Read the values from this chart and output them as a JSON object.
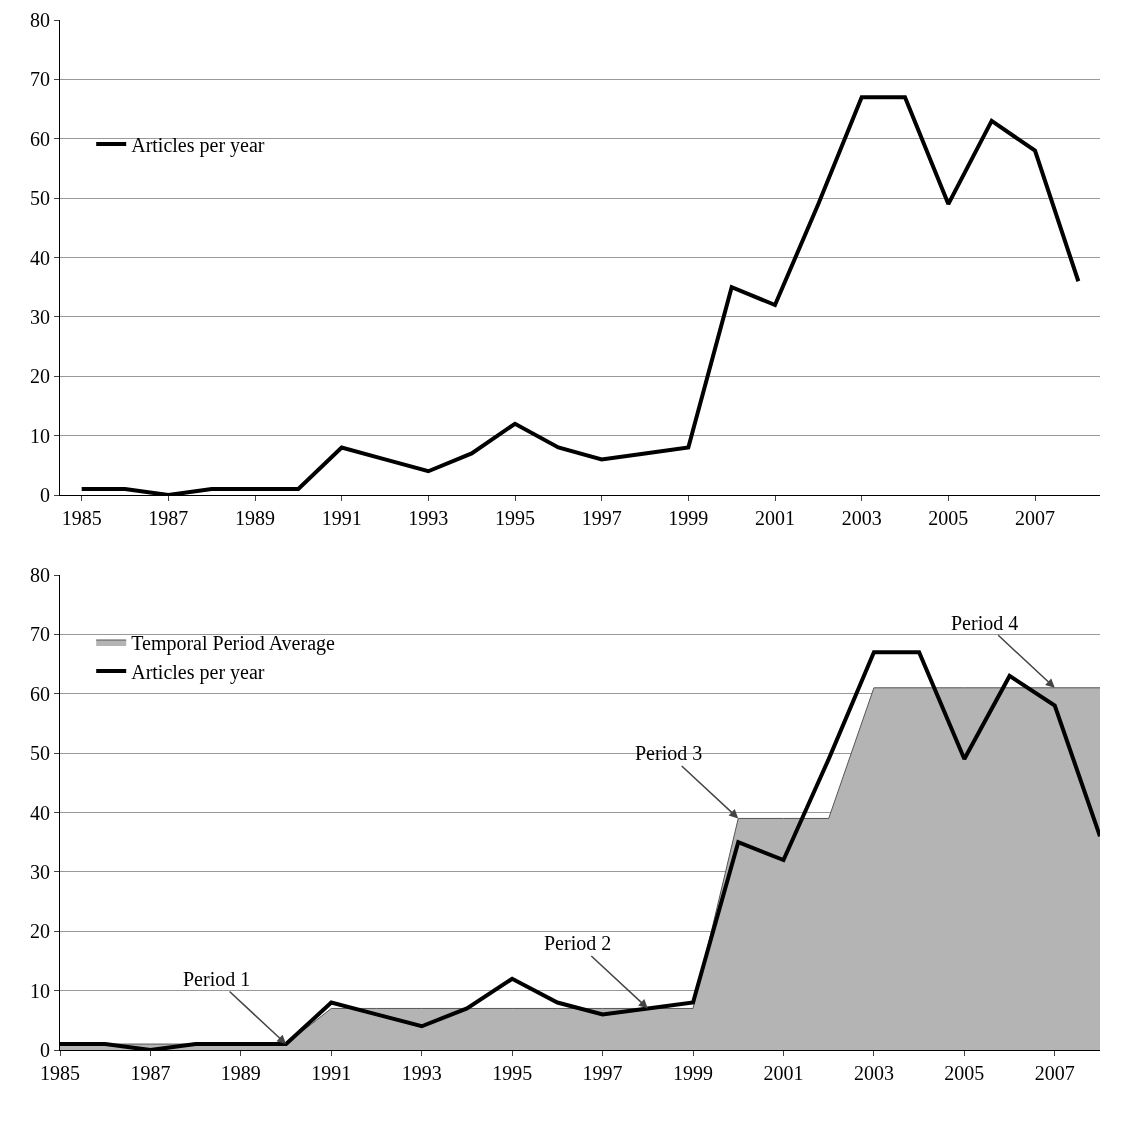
{
  "chart_data": [
    {
      "type": "line",
      "x": [
        1985,
        1986,
        1987,
        1988,
        1989,
        1990,
        1991,
        1992,
        1993,
        1994,
        1995,
        1996,
        1997,
        1998,
        1999,
        2000,
        2001,
        2002,
        2003,
        2004,
        2005,
        2006,
        2007,
        2008
      ],
      "series": [
        {
          "name": "Articles per year",
          "color": "#000000",
          "values": [
            1,
            1,
            0,
            1,
            1,
            1,
            8,
            6,
            4,
            7,
            12,
            8,
            6,
            7,
            8,
            35,
            32,
            49,
            67,
            67,
            49,
            63,
            58,
            36
          ]
        }
      ],
      "xlim": [
        1984.5,
        2008.5
      ],
      "xticks": [
        1985,
        1987,
        1989,
        1991,
        1993,
        1995,
        1997,
        1999,
        2001,
        2003,
        2005,
        2007
      ],
      "ylim": [
        0,
        80
      ],
      "yticks": [
        0,
        10,
        20,
        30,
        40,
        50,
        60,
        70,
        80
      ],
      "grid": "y",
      "legend": "left",
      "marker": "none"
    },
    {
      "type": "line",
      "x": [
        1985,
        1986,
        1987,
        1988,
        1989,
        1990,
        1991,
        1992,
        1993,
        1994,
        1995,
        1996,
        1997,
        1998,
        1999,
        2000,
        2001,
        2002,
        2003,
        2004,
        2005,
        2006,
        2007,
        2008
      ],
      "series": [
        {
          "name": "Temporal Period Average",
          "type": "area",
          "color": "#b4b4b4",
          "values": [
            1,
            1,
            1,
            1,
            1,
            1,
            7,
            7,
            7,
            7,
            7,
            7,
            7,
            7,
            7,
            39,
            39,
            39,
            61,
            61,
            61,
            61,
            61,
            61
          ]
        },
        {
          "name": "Articles per year",
          "color": "#000000",
          "values": [
            1,
            1,
            0,
            1,
            1,
            1,
            8,
            6,
            4,
            7,
            12,
            8,
            6,
            7,
            8,
            35,
            32,
            49,
            67,
            67,
            49,
            63,
            58,
            36
          ]
        }
      ],
      "xlim": [
        1985,
        2008
      ],
      "xticks": [
        1985,
        1987,
        1989,
        1991,
        1993,
        1995,
        1997,
        1999,
        2001,
        2003,
        2005,
        2007
      ],
      "ylim": [
        0,
        80
      ],
      "yticks": [
        0,
        10,
        20,
        30,
        40,
        50,
        60,
        70,
        80
      ],
      "grid": "y",
      "legend": "top left",
      "marker": "none",
      "annotations": [
        {
          "text": "Period 1",
          "x": 1990,
          "y": 1
        },
        {
          "text": "Period 2",
          "x": 1998,
          "y": 7
        },
        {
          "text": "Period 3",
          "x": 2000,
          "y": 39
        },
        {
          "text": "Period 4",
          "x": 2007,
          "y": 61
        }
      ]
    }
  ]
}
